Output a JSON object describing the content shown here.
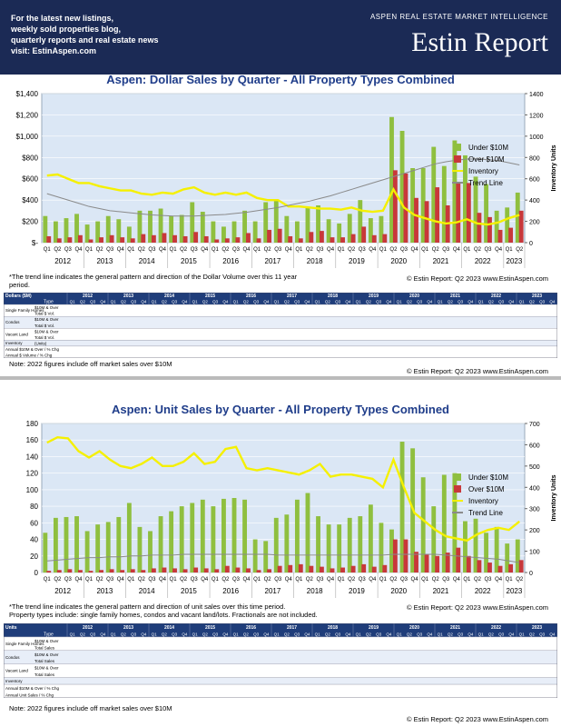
{
  "header": {
    "left_lines": [
      "For the latest new listings,",
      "weekly sold properties blog,",
      "quarterly reports and real estate news",
      "visit: EstinAspen.com"
    ],
    "tagline": "ASPEN REAL ESTATE MARKET INTELLIGENCE",
    "brand": "Estin Report"
  },
  "chart_data": [
    {
      "type": "bar_line",
      "title": "Aspen:  Dollar Sales by Quarter  -  All Property Types Combined",
      "categories": [
        "Q1",
        "Q2",
        "Q3",
        "Q4",
        "Q1",
        "Q2",
        "Q3",
        "Q4",
        "Q1",
        "Q2",
        "Q3",
        "Q4",
        "Q1",
        "Q2",
        "Q3",
        "Q4",
        "Q1",
        "Q2",
        "Q3",
        "Q4",
        "Q1",
        "Q2",
        "Q3",
        "Q4",
        "Q1",
        "Q2",
        "Q3",
        "Q4",
        "Q1",
        "Q2",
        "Q3",
        "Q4",
        "Q1",
        "Q2",
        "Q3",
        "Q4",
        "Q1",
        "Q2",
        "Q3",
        "Q4",
        "Q1",
        "Q2",
        "Q3",
        "Q4",
        "Q1",
        "Q2"
      ],
      "years": [
        "2012",
        "2013",
        "2014",
        "2015",
        "2016",
        "2017",
        "2018",
        "2019",
        "2020",
        "2021",
        "2022",
        "2023"
      ],
      "ylim": [
        0,
        1400
      ],
      "yticks": [
        {
          "value": 0,
          "label": "$-"
        },
        {
          "value": 200,
          "label": "$200"
        },
        {
          "value": 400,
          "label": "$400"
        },
        {
          "value": 600,
          "label": "$600"
        },
        {
          "value": 800,
          "label": "$800"
        },
        {
          "value": 1000,
          "label": "$1,000"
        },
        {
          "value": 1200,
          "label": "$1,200"
        },
        {
          "value": 1400,
          "label": "$1,400"
        }
      ],
      "y2lim": [
        0,
        1400
      ],
      "y2ticks": [
        0,
        200,
        400,
        600,
        800,
        1000,
        1200,
        1400
      ],
      "y2label": "Inventory Units",
      "grid": true,
      "legend": "right",
      "series": [
        {
          "name": "Under $10M",
          "color": "#8fbf3f",
          "mark": "bar",
          "values": [
            250,
            200,
            230,
            270,
            170,
            200,
            250,
            220,
            150,
            300,
            300,
            320,
            250,
            260,
            380,
            290,
            200,
            150,
            200,
            300,
            200,
            380,
            400,
            250,
            200,
            330,
            350,
            220,
            180,
            270,
            400,
            230,
            250,
            1180,
            1050,
            700,
            700,
            900,
            720,
            960,
            820,
            620,
            550,
            300,
            330,
            470
          ]
        },
        {
          "name": "Over $10M",
          "color": "#c8383a",
          "mark": "bar",
          "values": [
            60,
            40,
            50,
            70,
            30,
            50,
            70,
            50,
            40,
            80,
            70,
            90,
            70,
            60,
            100,
            60,
            30,
            40,
            50,
            90,
            40,
            120,
            130,
            60,
            40,
            100,
            110,
            50,
            50,
            80,
            150,
            70,
            80,
            680,
            650,
            420,
            390,
            520,
            350,
            570,
            560,
            280,
            240,
            120,
            140,
            300
          ]
        },
        {
          "name": "Inventory",
          "color": "#f5f000",
          "mark": "line",
          "axis": "y2",
          "values": [
            630,
            640,
            600,
            560,
            560,
            530,
            510,
            490,
            490,
            460,
            450,
            470,
            460,
            500,
            520,
            470,
            450,
            470,
            450,
            470,
            420,
            400,
            400,
            340,
            340,
            330,
            320,
            320,
            310,
            330,
            300,
            290,
            300,
            500,
            330,
            260,
            230,
            200,
            180,
            190,
            220,
            180,
            170,
            190,
            230,
            260
          ]
        },
        {
          "name": "Trend Line",
          "color": "#8a8a8a",
          "mark": "line",
          "values": [
            460,
            430,
            400,
            370,
            340,
            320,
            300,
            290,
            280,
            270,
            260,
            255,
            250,
            250,
            250,
            255,
            260,
            265,
            275,
            285,
            300,
            315,
            330,
            350,
            370,
            390,
            415,
            440,
            470,
            500,
            530,
            560,
            590,
            620,
            650,
            680,
            710,
            740,
            760,
            775,
            785,
            785,
            780,
            770,
            750,
            730
          ]
        }
      ]
    },
    {
      "type": "bar_line",
      "title": "Aspen:  Unit Sales by Quarter  -  All Property Types Combined",
      "categories": [
        "Q1",
        "Q2",
        "Q3",
        "Q4",
        "Q1",
        "Q2",
        "Q3",
        "Q4",
        "Q1",
        "Q2",
        "Q3",
        "Q4",
        "Q1",
        "Q2",
        "Q3",
        "Q4",
        "Q1",
        "Q2",
        "Q3",
        "Q4",
        "Q1",
        "Q2",
        "Q3",
        "Q4",
        "Q1",
        "Q2",
        "Q3",
        "Q4",
        "Q1",
        "Q2",
        "Q3",
        "Q4",
        "Q1",
        "Q2",
        "Q3",
        "Q4",
        "Q1",
        "Q2",
        "Q3",
        "Q4",
        "Q1",
        "Q2",
        "Q3",
        "Q4",
        "Q1",
        "Q2"
      ],
      "years": [
        "2012",
        "2013",
        "2014",
        "2015",
        "2016",
        "2017",
        "2018",
        "2019",
        "2020",
        "2021",
        "2022",
        "2023"
      ],
      "ylim": [
        0,
        180
      ],
      "yticks": [
        0,
        20,
        40,
        60,
        80,
        100,
        120,
        140,
        160,
        180
      ],
      "y2lim": [
        0,
        700
      ],
      "y2ticks": [
        0,
        100,
        200,
        300,
        400,
        500,
        600,
        700
      ],
      "y2label": "Inventory Units",
      "grid": true,
      "legend": "right",
      "series": [
        {
          "name": "Under $10M",
          "color": "#8fbf3f",
          "mark": "bar",
          "values": [
            48,
            66,
            67,
            68,
            50,
            58,
            61,
            67,
            84,
            55,
            50,
            68,
            74,
            80,
            84,
            88,
            80,
            89,
            90,
            88,
            40,
            38,
            66,
            70,
            88,
            96,
            68,
            58,
            58,
            66,
            68,
            82,
            60,
            52,
            158,
            150,
            115,
            80,
            118,
            120,
            62,
            65,
            48,
            55,
            35,
            40
          ]
        },
        {
          "name": "Over $10M",
          "color": "#c8383a",
          "mark": "bar",
          "values": [
            2,
            3,
            4,
            3,
            2,
            3,
            4,
            3,
            4,
            3,
            5,
            6,
            5,
            4,
            6,
            5,
            4,
            8,
            6,
            5,
            3,
            4,
            8,
            9,
            10,
            8,
            7,
            5,
            6,
            8,
            10,
            7,
            9,
            40,
            40,
            25,
            22,
            20,
            24,
            30,
            20,
            15,
            12,
            8,
            10,
            15
          ]
        },
        {
          "name": "Inventory",
          "color": "#f5f000",
          "mark": "line",
          "axis": "y2",
          "values": [
            610,
            635,
            630,
            570,
            540,
            570,
            530,
            500,
            490,
            510,
            540,
            500,
            500,
            520,
            560,
            510,
            520,
            580,
            590,
            490,
            480,
            490,
            480,
            470,
            460,
            480,
            510,
            450,
            460,
            460,
            450,
            440,
            400,
            530,
            400,
            280,
            240,
            200,
            170,
            160,
            150,
            180,
            200,
            210,
            200,
            240
          ]
        },
        {
          "name": "Trend Line",
          "color": "#8a8a8a",
          "mark": "line",
          "values": [
            14,
            15,
            16,
            17,
            18,
            18,
            19,
            19,
            20,
            20,
            21,
            21,
            21,
            22,
            22,
            22,
            22,
            22,
            22,
            22,
            22,
            22,
            21,
            21,
            21,
            21,
            21,
            21,
            21,
            21,
            21,
            21,
            21,
            22,
            22,
            22,
            22,
            22,
            21,
            20,
            19,
            18,
            17,
            16,
            14,
            12
          ]
        }
      ]
    }
  ],
  "sections": [
    {
      "notes": [
        "*The trend line indicates the general pattern and direction of the Dollar Volume over this 11 year period."
      ],
      "copyright": "© Estin Report: Q2 2023 www.EstinAspen.com",
      "table": {
        "corner": "Dollars ($M)",
        "type_label": "Type",
        "years": [
          "2012",
          "2013",
          "2014",
          "2015",
          "2016",
          "2017",
          "2018",
          "2019",
          "2020",
          "2021",
          "2022",
          "2023"
        ],
        "quarters": [
          "Q1",
          "Q2",
          "Q3",
          "Q4"
        ],
        "rows": [
          {
            "group": "Single Family Homes",
            "items": [
              "$10M & Over",
              "Total $ Vol."
            ]
          },
          {
            "group": "Condos",
            "items": [
              "$10M & Over",
              "Total $ Vol."
            ]
          },
          {
            "group": "Vacant Land",
            "items": [
              "$10M & Over",
              "Total $ Vol."
            ]
          },
          {
            "group": "Inventory",
            "items": [
              "(Units)"
            ]
          },
          {
            "group": "",
            "items": [
              "Annual $10M & Over / % Chg",
              "Annual $ Volume / % Chg"
            ]
          }
        ]
      },
      "footnote": "Note: 2022 figures include off market sales over $10M",
      "copyright2": "© Estin Report: Q2 2023 www.EstinAspen.com"
    },
    {
      "notes": [
        "*The trend line indicates the general pattern and direction of unit sales over this time period.",
        "Property types include: single family homes, condos and vacant land/lots. Fractionals are not included."
      ],
      "copyright": "© Estin Report: Q2 2023 www.EstinAspen.com",
      "table": {
        "corner": "Units",
        "type_label": "Type",
        "years": [
          "2012",
          "2013",
          "2014",
          "2015",
          "2016",
          "2017",
          "2018",
          "2019",
          "2020",
          "2021",
          "2022",
          "2023"
        ],
        "quarters": [
          "Q1",
          "Q2",
          "Q3",
          "Q4"
        ],
        "rows": [
          {
            "group": "Single Family Homes",
            "items": [
              "$10M & Over",
              "Total Sales"
            ]
          },
          {
            "group": "Condos",
            "items": [
              "$10M & Over",
              "Total Sales"
            ]
          },
          {
            "group": "Vacant Land",
            "items": [
              "$10M & Over",
              "Total Sales"
            ]
          },
          {
            "group": "Inventory",
            "items": [
              ""
            ]
          },
          {
            "group": "",
            "items": [
              "Annual $10M & Over / % Chg",
              "Annual Unit Sales / % Chg"
            ]
          }
        ]
      },
      "footnote": "Note: 2022 figures include off market sales over $10M",
      "copyright2": "© Estin Report: Q2 2023 www.EstinAspen.com"
    }
  ]
}
